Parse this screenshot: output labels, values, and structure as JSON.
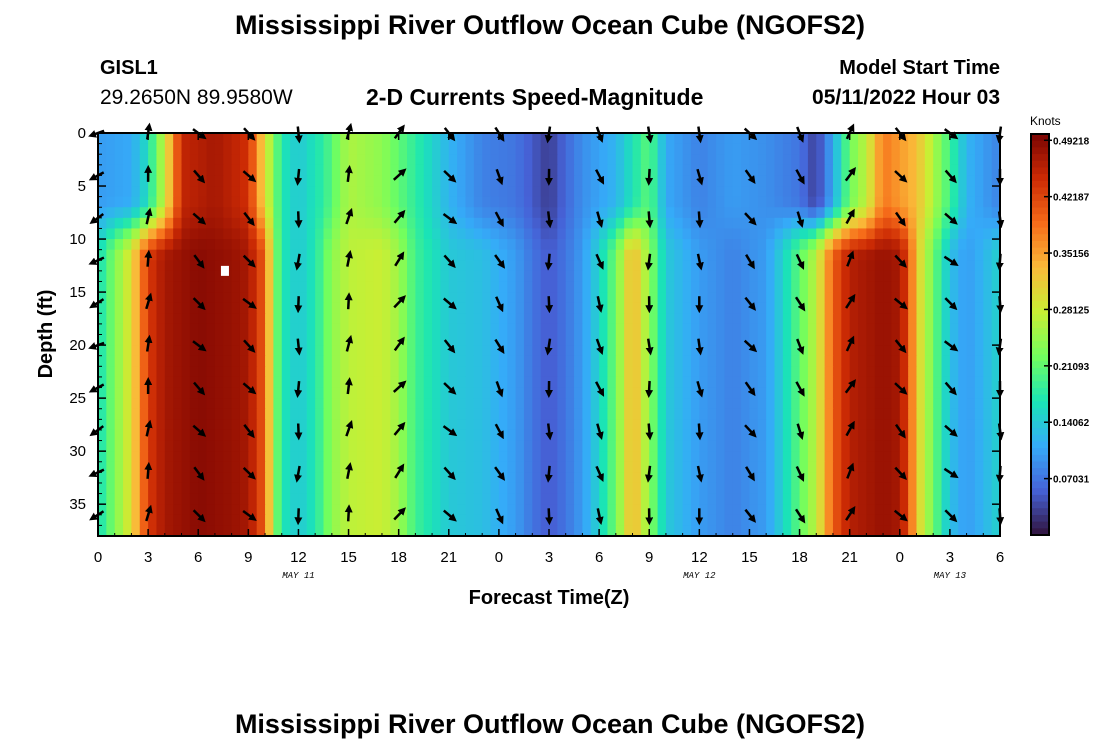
{
  "header": {
    "title": "Mississippi River Outflow Ocean Cube (NGOFS2)",
    "station_id": "GISL1",
    "station_coords": "29.2650N  89.9580W",
    "subtitle": "2-D Currents Speed-Magnitude",
    "model_start_label": "Model Start Time",
    "model_start_time": "05/11/2022 Hour 03"
  },
  "footer": {
    "title": "Mississippi River Outflow Ocean Cube (NGOFS2)"
  },
  "colors": {
    "colormap": [
      "#30123b",
      "#4662d7",
      "#35abf8",
      "#1ae4b6",
      "#72fe5e",
      "#c8ef34",
      "#faba39",
      "#f66b19",
      "#cb2a04",
      "#7a0403"
    ],
    "marker": "#ffffff",
    "arrow": "#000000"
  },
  "chart_data": {
    "type": "heatmap",
    "xlabel": "Forecast Time(Z)",
    "ylabel": "Depth (ft)",
    "xlim": [
      0,
      54
    ],
    "ylim": [
      38,
      0
    ],
    "x_tick_positions": [
      0,
      3,
      6,
      9,
      12,
      15,
      18,
      21,
      24,
      27,
      30,
      33,
      36,
      39,
      42,
      45,
      48,
      51,
      54
    ],
    "x_tick_labels": [
      "0",
      "3",
      "6",
      "9",
      "12",
      "15",
      "18",
      "21",
      "0",
      "3",
      "6",
      "9",
      "12",
      "15",
      "18",
      "21",
      "0",
      "3",
      "6"
    ],
    "y_ticks": [
      0,
      5,
      10,
      15,
      20,
      25,
      30,
      35
    ],
    "date_labels": [
      {
        "label": "MAY 11",
        "x": 12
      },
      {
        "label": "MAY 12",
        "x": 36
      },
      {
        "label": "MAY 13",
        "x": 51
      }
    ],
    "colorbar": {
      "unit": "Knots",
      "range": [
        0,
        0.5
      ],
      "tick_values": [
        0.49218,
        0.42187,
        0.35156,
        0.28125,
        0.21093,
        0.14062,
        0.07031
      ],
      "tick_labels": [
        "0.49218",
        "0.42187",
        "0.35156",
        "0.28125",
        "0.21093",
        "0.14062",
        "0.07031"
      ]
    },
    "current_marker": {
      "x": 7.6,
      "depth": 13
    },
    "speed_profile_surface": [
      [
        0,
        0.1
      ],
      [
        2,
        0.11
      ],
      [
        3,
        0.16
      ],
      [
        4,
        0.28
      ],
      [
        5,
        0.45
      ],
      [
        7,
        0.47
      ],
      [
        9,
        0.44
      ],
      [
        10,
        0.3
      ],
      [
        11,
        0.17
      ],
      [
        12,
        0.14
      ],
      [
        13.5,
        0.18
      ],
      [
        15,
        0.26
      ],
      [
        17,
        0.24
      ],
      [
        19,
        0.18
      ],
      [
        21,
        0.12
      ],
      [
        23,
        0.08
      ],
      [
        25,
        0.07
      ],
      [
        27,
        0.03
      ],
      [
        29,
        0.09
      ],
      [
        31,
        0.12
      ],
      [
        33,
        0.21
      ],
      [
        34,
        0.11
      ],
      [
        36,
        0.08
      ],
      [
        38,
        0.1
      ],
      [
        40,
        0.09
      ],
      [
        42,
        0.07
      ],
      [
        43,
        0.03
      ],
      [
        44,
        0.11
      ],
      [
        45,
        0.22
      ],
      [
        46,
        0.27
      ],
      [
        47,
        0.38
      ],
      [
        49,
        0.33
      ],
      [
        51,
        0.19
      ],
      [
        52,
        0.12
      ],
      [
        54,
        0.08
      ]
    ],
    "speed_profile_deep": [
      [
        0,
        0.16
      ],
      [
        2,
        0.3
      ],
      [
        3,
        0.43
      ],
      [
        4,
        0.47
      ],
      [
        6,
        0.49
      ],
      [
        8,
        0.48
      ],
      [
        9,
        0.47
      ],
      [
        10,
        0.4
      ],
      [
        10.5,
        0.25
      ],
      [
        11,
        0.17
      ],
      [
        12,
        0.14
      ],
      [
        13,
        0.17
      ],
      [
        14,
        0.24
      ],
      [
        15,
        0.27
      ],
      [
        17,
        0.28
      ],
      [
        18,
        0.25
      ],
      [
        19,
        0.19
      ],
      [
        21,
        0.14
      ],
      [
        23,
        0.13
      ],
      [
        25,
        0.1
      ],
      [
        26,
        0.07
      ],
      [
        27,
        0.05
      ],
      [
        28,
        0.07
      ],
      [
        29,
        0.1
      ],
      [
        30,
        0.15
      ],
      [
        31,
        0.22
      ],
      [
        32,
        0.34
      ],
      [
        33,
        0.24
      ],
      [
        34,
        0.14
      ],
      [
        36,
        0.1
      ],
      [
        38,
        0.08
      ],
      [
        39,
        0.09
      ],
      [
        40,
        0.1
      ],
      [
        41,
        0.15
      ],
      [
        42,
        0.21
      ],
      [
        43,
        0.27
      ],
      [
        44,
        0.4
      ],
      [
        45,
        0.46
      ],
      [
        47,
        0.48
      ],
      [
        48,
        0.47
      ],
      [
        48.5,
        0.42
      ],
      [
        49,
        0.32
      ],
      [
        50,
        0.22
      ],
      [
        51,
        0.13
      ],
      [
        52,
        0.1
      ],
      [
        53,
        0.12
      ],
      [
        54,
        0.15
      ]
    ],
    "arrow_depths": [
      0,
      4,
      8,
      12,
      16,
      20,
      24,
      28,
      32,
      36
    ],
    "arrow_x": [
      0,
      3,
      6,
      9,
      12,
      15,
      18,
      21,
      24,
      27,
      30,
      33,
      36,
      39,
      42,
      45,
      48,
      51,
      54
    ],
    "arrow_direction_deg_by_time": [
      [
        0,
        300
      ],
      [
        6,
        45
      ],
      [
        9,
        45
      ],
      [
        11,
        20
      ],
      [
        12,
        0
      ],
      [
        13.5,
        180
      ],
      [
        15,
        170
      ],
      [
        17,
        120
      ],
      [
        18,
        140
      ],
      [
        21,
        45
      ],
      [
        24,
        30
      ],
      [
        26,
        20
      ],
      [
        27,
        0
      ],
      [
        28,
        330
      ],
      [
        30,
        20
      ],
      [
        33,
        0
      ],
      [
        36,
        10
      ],
      [
        39,
        40
      ],
      [
        42,
        25
      ],
      [
        44,
        160
      ],
      [
        45,
        150
      ],
      [
        46,
        60
      ],
      [
        48,
        45
      ],
      [
        51,
        50
      ],
      [
        54,
        0
      ]
    ]
  }
}
